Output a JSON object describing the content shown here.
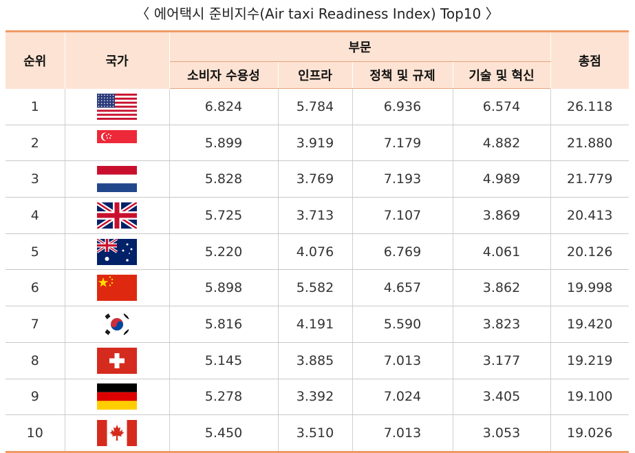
{
  "caption": "〈 에어택시 준비지수(Air taxi Readiness Index) Top10 〉",
  "headers": {
    "rank": "순위",
    "country": "국가",
    "sector": "부문",
    "consumer": "소비자 수용성",
    "infra": "인프라",
    "policy": "정책 및 규제",
    "tech": "기술 및 혁신",
    "total": "총점"
  },
  "rows": [
    {
      "rank": "1",
      "flag": "usa-flag-icon",
      "consumer": "6.824",
      "infra": "5.784",
      "policy": "6.936",
      "tech": "6.574",
      "total": "26.118"
    },
    {
      "rank": "2",
      "flag": "singapore-flag-icon",
      "consumer": "5.899",
      "infra": "3.919",
      "policy": "7.179",
      "tech": "4.882",
      "total": "21.880"
    },
    {
      "rank": "3",
      "flag": "netherlands-flag-icon",
      "consumer": "5.828",
      "infra": "3.769",
      "policy": "7.193",
      "tech": "4.989",
      "total": "21.779"
    },
    {
      "rank": "4",
      "flag": "uk-flag-icon",
      "consumer": "5.725",
      "infra": "3.713",
      "policy": "7.107",
      "tech": "3.869",
      "total": "20.413"
    },
    {
      "rank": "5",
      "flag": "australia-flag-icon",
      "consumer": "5.220",
      "infra": "4.076",
      "policy": "6.769",
      "tech": "4.061",
      "total": "20.126"
    },
    {
      "rank": "6",
      "flag": "china-flag-icon",
      "consumer": "5.898",
      "infra": "5.582",
      "policy": "4.657",
      "tech": "3.862",
      "total": "19.998"
    },
    {
      "rank": "7",
      "flag": "korea-flag-icon",
      "consumer": "5.816",
      "infra": "4.191",
      "policy": "5.590",
      "tech": "3.823",
      "total": "19.420"
    },
    {
      "rank": "8",
      "flag": "switzerland-flag-icon",
      "consumer": "5.145",
      "infra": "3.885",
      "policy": "7.013",
      "tech": "3.177",
      "total": "19.219"
    },
    {
      "rank": "9",
      "flag": "germany-flag-icon",
      "consumer": "5.278",
      "infra": "3.392",
      "policy": "7.024",
      "tech": "3.405",
      "total": "19.100"
    },
    {
      "rank": "10",
      "flag": "canada-flag-icon",
      "consumer": "5.450",
      "infra": "3.510",
      "policy": "7.013",
      "tech": "3.053",
      "total": "19.026"
    }
  ],
  "colors": {
    "header_bg": "#fde3d3",
    "accent_border": "#ef9a64"
  }
}
